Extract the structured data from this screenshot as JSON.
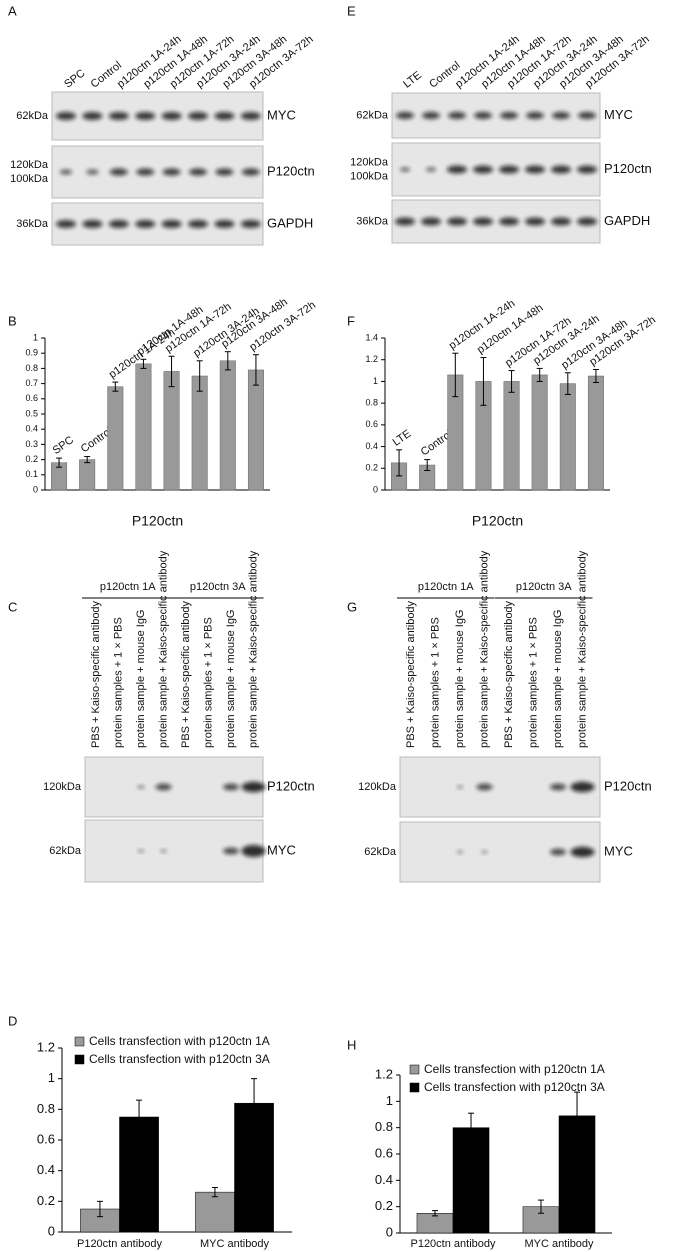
{
  "blots": [
    {
      "panel": "A",
      "lanes": [
        "SPC",
        "Control",
        "p120ctn 1A-24h",
        "p120ctn 1A-48h",
        "p120ctn 1A-72h",
        "p120ctn 3A-24h",
        "p120ctn 3A-48h",
        "p120ctn 3A-72h"
      ],
      "rows": [
        {
          "markers": [
            "62kDa"
          ],
          "protein": "MYC"
        },
        {
          "markers": [
            "120kDa",
            "100kDa"
          ],
          "protein": "P120ctn"
        },
        {
          "markers": [
            "36kDa"
          ],
          "protein": "GAPDH"
        }
      ]
    },
    {
      "panel": "E",
      "lanes": [
        "LTE",
        "Control",
        "p120ctn 1A-24h",
        "p120ctn 1A-48h",
        "p120ctn 1A-72h",
        "p120ctn 3A-24h",
        "p120ctn 3A-48h",
        "p120ctn 3A-72h"
      ],
      "rows": [
        {
          "markers": [
            "62kDa"
          ],
          "protein": "MYC"
        },
        {
          "markers": [
            "120kDa",
            "100kDa"
          ],
          "protein": "P120ctn"
        },
        {
          "markers": [
            "36kDa"
          ],
          "protein": "GAPDH"
        }
      ]
    },
    {
      "panel": "C",
      "groups": [
        "p120ctn  1A",
        "p120ctn 3A"
      ],
      "lanes": [
        "PBS + Kaiso-specific antibody",
        "protein samples + 1 × PBS",
        "protein sample + mouse IgG",
        "protein sample + Kaiso-specific antibody",
        "PBS + Kaiso-specific antibody",
        "protein samples + 1 × PBS",
        "protein sample + mouse IgG",
        "protein sample + Kaiso-specific antibody"
      ],
      "rows": [
        {
          "markers": [
            "120kDa"
          ],
          "protein": "P120ctn"
        },
        {
          "markers": [
            "62kDa"
          ],
          "protein": "MYC"
        }
      ]
    },
    {
      "panel": "G",
      "groups": [
        "p120ctn  1A",
        "p120ctn 3A"
      ],
      "lanes": [
        "PBS + Kaiso-specific antibody",
        "protein samples + 1 × PBS",
        "protein sample + mouse IgG",
        "protein sample + Kaiso-specific antibody",
        "PBS + Kaiso-specific antibody",
        "protein samples + 1 × PBS",
        "protein sample + mouse IgG",
        "protein sample + Kaiso-specific antibody"
      ],
      "rows": [
        {
          "markers": [
            "120kDa"
          ],
          "protein": "P120ctn"
        },
        {
          "markers": [
            "62kDa"
          ],
          "protein": "MYC"
        }
      ]
    }
  ],
  "chart_data": [
    {
      "type": "bar",
      "panel": "B",
      "xlabel": "P120ctn",
      "color": "#999999",
      "categories": [
        "SPC",
        "Control",
        "p120ctn 1A-24h",
        "p120ctn 1A-48h",
        "p120ctn 1A-72h",
        "p120ctn 3A-24h",
        "p120ctn 3A-48h",
        "p120ctn 3A-72h"
      ],
      "values": [
        0.18,
        0.2,
        0.68,
        0.83,
        0.78,
        0.75,
        0.85,
        0.79
      ],
      "errors": [
        0.03,
        0.02,
        0.03,
        0.03,
        0.1,
        0.1,
        0.06,
        0.1
      ],
      "ylim": [
        0,
        1
      ],
      "yticks": [
        0,
        0.1,
        0.2,
        0.3,
        0.4,
        0.5,
        0.6,
        0.7,
        0.8,
        0.9,
        1
      ]
    },
    {
      "type": "bar",
      "panel": "F",
      "xlabel": "P120ctn",
      "color": "#999999",
      "categories": [
        "LTE",
        "Control",
        "p120ctn 1A-24h",
        "p120ctn 1A-48h",
        "p120ctn 1A-72h",
        "p120ctn 3A-24h",
        "p120ctn 3A-48h",
        "p120ctn 3A-72h"
      ],
      "values": [
        0.25,
        0.23,
        1.06,
        1.0,
        1.0,
        1.06,
        0.98,
        1.05
      ],
      "errors": [
        0.12,
        0.05,
        0.2,
        0.22,
        0.1,
        0.06,
        0.1,
        0.06
      ],
      "ylim": [
        0,
        1.4
      ],
      "yticks": [
        0,
        0.2,
        0.4,
        0.6,
        0.8,
        1,
        1.2,
        1.4
      ]
    },
    {
      "type": "bar",
      "panel": "D",
      "categories": [
        "P120ctn antibody",
        "MYC antibody"
      ],
      "series": [
        {
          "name": "Cells transfection with p120ctn 1A",
          "color": "#999999",
          "values": [
            0.15,
            0.26
          ],
          "errors": [
            0.05,
            0.03
          ]
        },
        {
          "name": "Cells transfection with p120ctn 3A",
          "color": "#000000",
          "values": [
            0.75,
            0.84
          ],
          "errors": [
            0.11,
            0.16
          ]
        }
      ],
      "ylim": [
        0,
        1.2
      ],
      "yticks": [
        0,
        0.2,
        0.4,
        0.6,
        0.8,
        1,
        1.2
      ]
    },
    {
      "type": "bar",
      "panel": "H",
      "categories": [
        "P120ctn antibody",
        "MYC antibody"
      ],
      "series": [
        {
          "name": "Cells transfection with p120ctn 1A",
          "color": "#999999",
          "values": [
            0.15,
            0.2
          ],
          "errors": [
            0.02,
            0.05
          ]
        },
        {
          "name": "Cells transfection with p120ctn 3A",
          "color": "#000000",
          "values": [
            0.8,
            0.89
          ],
          "errors": [
            0.11,
            0.18
          ]
        }
      ],
      "ylim": [
        0,
        1.2
      ],
      "yticks": [
        0,
        0.2,
        0.4,
        0.6,
        0.8,
        1,
        1.2
      ]
    }
  ]
}
